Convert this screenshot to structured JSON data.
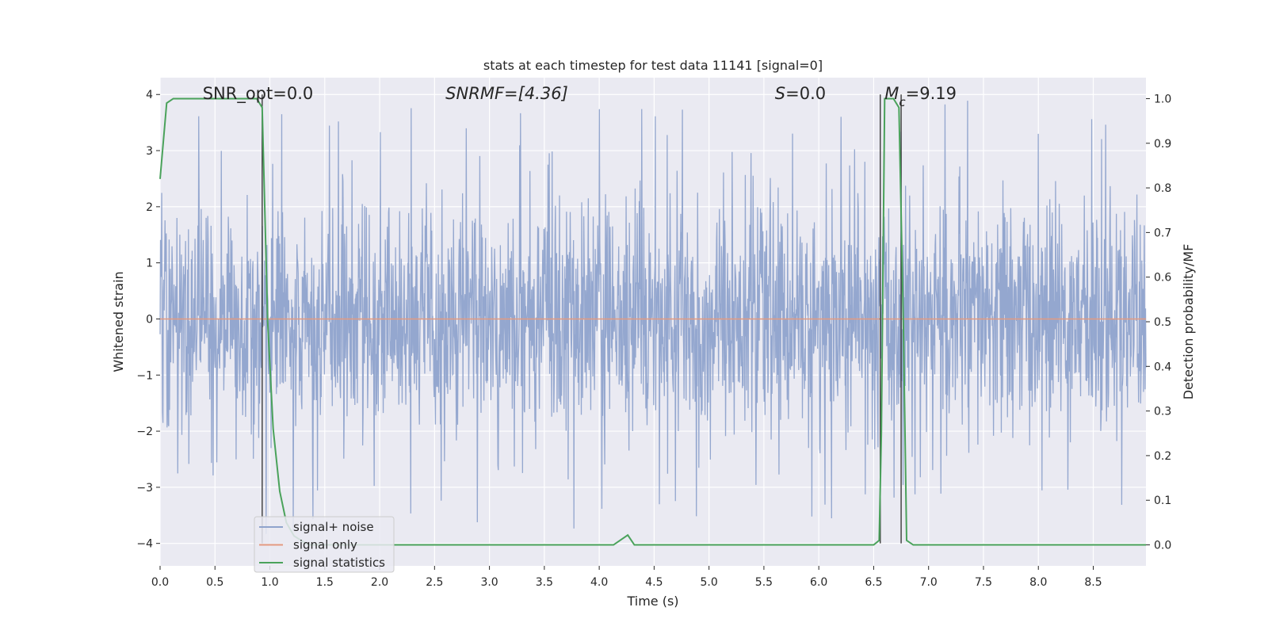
{
  "chart_data": {
    "type": "line",
    "title": "stats at each timestep for test data 11141 [signal=0]",
    "xlabel": "Time (s)",
    "ylabel_left": "Whitened strain",
    "ylabel_right": "Detection probability/MF",
    "xlim": [
      0.0,
      8.98
    ],
    "ylim_left": [
      -4.4,
      4.3
    ],
    "ylim_right": [
      -0.047,
      1.047
    ],
    "x_ticks": [
      "0.0",
      "0.5",
      "1.0",
      "1.5",
      "2.0",
      "2.5",
      "3.0",
      "3.5",
      "4.0",
      "4.5",
      "5.0",
      "5.5",
      "6.0",
      "6.5",
      "7.0",
      "7.5",
      "8.0",
      "8.5"
    ],
    "y_ticks_left": [
      "4",
      "3",
      "2",
      "1",
      "0",
      "−1",
      "−2",
      "−3",
      "−4"
    ],
    "y_ticks_right": [
      "1.0",
      "0.9",
      "0.8",
      "0.7",
      "0.6",
      "0.5",
      "0.4",
      "0.3",
      "0.2",
      "0.1",
      "0.0"
    ],
    "grid": true,
    "legend_position": "lower-left",
    "annotations": [
      {
        "html": "SNR_opt=0.0",
        "x": 0.2
      },
      {
        "html": "SNR<tspan font-style='italic'>M</tspan><tspan font-style='italic'>F</tspan>=[4.36]",
        "x": 2.6,
        "italic_prefix": true
      },
      {
        "html": "<tspan font-style='italic'>S</tspan>=0.0",
        "x": 5.6
      },
      {
        "html": "<tspan font-style='italic'>M</tspan><tspan baseline-shift='sub' font-size='15' font-style='italic'>c</tspan>=9.19",
        "x": 6.6
      }
    ],
    "annotation_y": 4.0,
    "series": [
      {
        "name": "signal+ noise",
        "color": "#8fa3cc",
        "kind": "noise",
        "amplitude_typical": 1.6,
        "amplitude_peak": 3.9
      },
      {
        "name": "signal only",
        "color": "#e49a80",
        "kind": "constant",
        "value": 0.0
      },
      {
        "name": "signal statistics",
        "color": "#4aa25b",
        "axis": "right",
        "x": [
          0.0,
          0.06,
          0.12,
          0.3,
          0.5,
          0.7,
          0.88,
          0.93,
          0.98,
          1.03,
          1.09,
          1.15,
          1.22,
          1.35,
          1.6,
          2.0,
          3.0,
          4.0,
          4.13,
          4.26,
          4.32,
          4.5,
          5.5,
          6.5,
          6.55,
          6.57,
          6.6,
          6.63,
          6.68,
          6.73,
          6.77,
          6.8,
          6.86,
          7.0,
          8.0,
          8.98
        ],
        "y": [
          0.82,
          0.99,
          1.0,
          1.0,
          1.0,
          1.0,
          1.0,
          0.98,
          0.5,
          0.26,
          0.12,
          0.05,
          0.02,
          0.0,
          0.0,
          0.0,
          0.0,
          0.0,
          0.0,
          0.022,
          0.0,
          0.0,
          0.0,
          0.0,
          0.01,
          0.25,
          1.0,
          1.0,
          1.0,
          0.98,
          0.5,
          0.01,
          0.0,
          0.0,
          0.0,
          0.0
        ]
      }
    ],
    "vertical_lines": [
      {
        "x": 0.93,
        "ymin": -4.0,
        "ymax": 4.0
      },
      {
        "x": 6.56,
        "ymin": -4.0,
        "ymax": 4.0
      },
      {
        "x": 6.75,
        "ymin": -4.0,
        "ymax": 4.0
      }
    ]
  }
}
